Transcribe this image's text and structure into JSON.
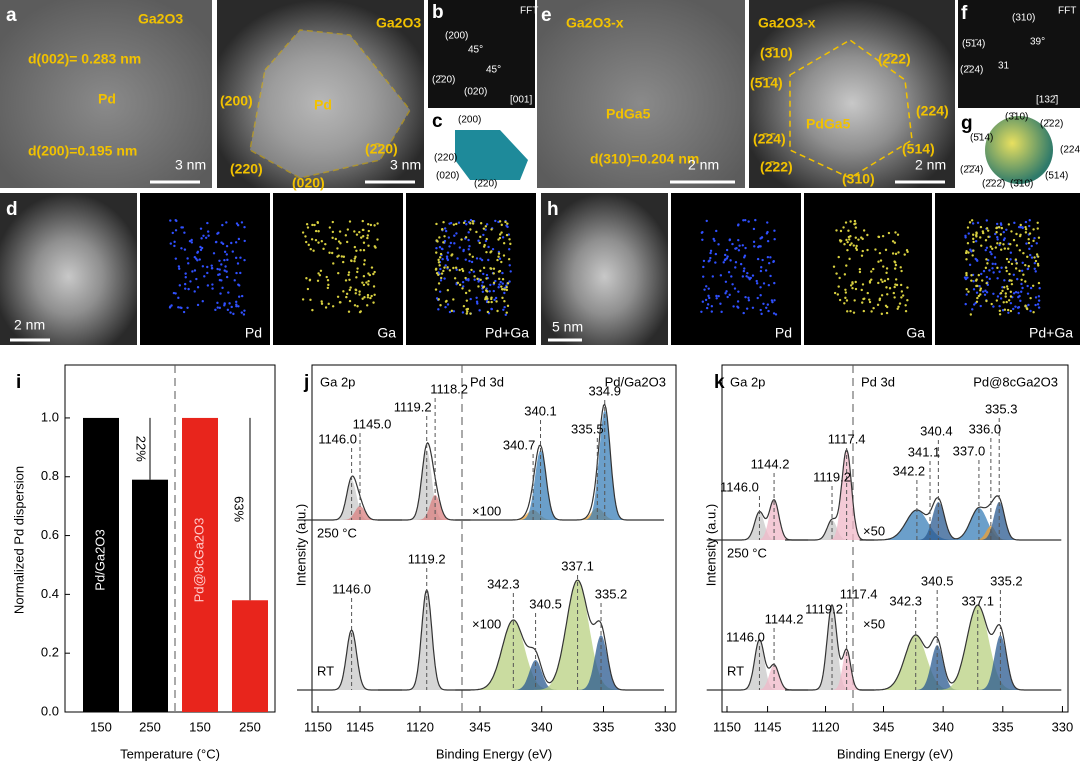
{
  "panels": {
    "a": {
      "label": "a",
      "texts": [
        "Ga2O3",
        "d(002)= 0.283 nm",
        "Pd",
        "d(200)=0.195 nm",
        "3 nm"
      ]
    },
    "a2": {
      "texts": [
        "Ga2O3",
        "Pd",
        "(200)",
        "(220)",
        "(020)",
        "(2̄20)",
        "3 nm"
      ]
    },
    "b": {
      "label": "b",
      "texts": [
        "FFT",
        "(200)",
        "45°",
        "45°",
        "(2̄20)",
        "(020)",
        "[001]"
      ]
    },
    "c": {
      "label": "c",
      "texts": [
        "(200)",
        "(220)",
        "(020)",
        "(2̄20)"
      ]
    },
    "e": {
      "label": "e",
      "texts": [
        "Ga2O3-x",
        "PdGa5",
        "d(310)=0.204 nm",
        "2 nm"
      ]
    },
    "e2": {
      "texts": [
        "Ga2O3-x",
        "(3̄10)",
        "(5̄1̄4)",
        "(2̄2̄4)",
        "(2̄22)",
        "(310)",
        "(514)",
        "(224)",
        "(2̄22)",
        "PdGa5",
        "2 nm"
      ]
    },
    "f": {
      "label": "f",
      "texts": [
        "FFT",
        "(310)",
        "(5̄1̄4)",
        "39°",
        "(2̄24)",
        "31",
        "[132̄]"
      ]
    },
    "g": {
      "label": "g",
      "texts": [
        "(3̄10)",
        "(2̄22)",
        "(5̄14)",
        "(224)",
        "(2̄2̄4)",
        "(514)",
        "(3̄10)",
        "(2̄22̄)"
      ]
    },
    "d": {
      "label": "d",
      "texts": [
        "2 nm",
        "Pd",
        "Ga",
        "Pd+Ga"
      ]
    },
    "h": {
      "label": "h",
      "texts": [
        "5 nm",
        "Pd",
        "Ga",
        "Pd+Ga"
      ]
    }
  },
  "panel_i": {
    "type": "bar",
    "label": "i",
    "ylabel": "Normalized Pd dispersion",
    "xlabel": "Temperature (°C)",
    "categories": [
      "150",
      "250",
      "150",
      "250"
    ],
    "values": [
      1.0,
      0.79,
      1.0,
      0.38
    ],
    "colors": [
      "#000000",
      "#000000",
      "#e8251c",
      "#e8251c"
    ],
    "group_labels": [
      "Pd/Ga2O3",
      "Pd@8cGa2O3"
    ],
    "annotations": [
      "22%",
      "63%"
    ],
    "ylim": [
      0,
      1.18
    ],
    "yticks": [
      {
        "value": 0,
        "label": "0.0"
      },
      {
        "value": 0.2,
        "label": "0.2"
      },
      {
        "value": 0.4,
        "label": "0.4"
      },
      {
        "value": 0.6,
        "label": "0.6"
      },
      {
        "value": 0.8,
        "label": "0.8"
      },
      {
        "value": 1,
        "label": "1.0"
      }
    ]
  },
  "panel_j": {
    "label": "j",
    "region1": "Ga 2p",
    "region2": "Pd 3d",
    "sample": "Pd/Ga2O3",
    "top_condition": "250 °C",
    "bottom_condition": "RT",
    "top_factor": "×100",
    "bottom_factor": "×100",
    "top_peaks": [
      "1146.0",
      "1145.0",
      "1119.2",
      "1118.2",
      "340.7",
      "340.1",
      "335.5",
      "334.9"
    ],
    "bottom_peaks": [
      "1146.0",
      "1119.2",
      "342.3",
      "340.5",
      "337.1",
      "335.2"
    ],
    "xticks": [
      1150,
      1145,
      1120,
      345,
      340,
      335,
      330
    ],
    "ylabel": "Intensity (a.u.)",
    "xlabel": "Binding Energy (eV)"
  },
  "panel_k": {
    "label": "k",
    "region1": "Ga 2p",
    "region2": "Pd 3d",
    "sample": "Pd@8cGa2O3",
    "top_condition": "250 °C",
    "bottom_condition": "RT",
    "top_factor": "×50",
    "bottom_factor": "×50",
    "top_peaks": [
      "1144.2",
      "1146.0",
      "1119.2",
      "1117.4",
      "342.2",
      "341.1",
      "340.4",
      "337.0",
      "336.0",
      "335.3"
    ],
    "bottom_peaks": [
      "1146.0",
      "1144.2",
      "1119.2",
      "1117.4",
      "342.3",
      "340.5",
      "337.1",
      "335.2"
    ],
    "xticks": [
      1150,
      1145,
      1120,
      345,
      340,
      335,
      330
    ],
    "ylabel": "Intensity (a.u.)",
    "xlabel": "Binding Energy (eV)"
  }
}
